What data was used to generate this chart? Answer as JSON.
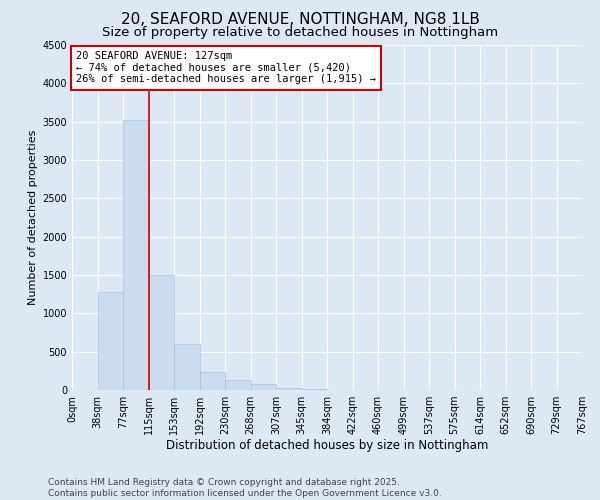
{
  "title": "20, SEAFORD AVENUE, NOTTINGHAM, NG8 1LB",
  "subtitle": "Size of property relative to detached houses in Nottingham",
  "xlabel": "Distribution of detached houses by size in Nottingham",
  "ylabel": "Number of detached properties",
  "bin_labels": [
    "0sqm",
    "38sqm",
    "77sqm",
    "115sqm",
    "153sqm",
    "192sqm",
    "230sqm",
    "268sqm",
    "307sqm",
    "345sqm",
    "384sqm",
    "422sqm",
    "460sqm",
    "499sqm",
    "537sqm",
    "575sqm",
    "614sqm",
    "652sqm",
    "690sqm",
    "729sqm",
    "767sqm"
  ],
  "bar_values": [
    0,
    1280,
    3520,
    1500,
    600,
    240,
    130,
    75,
    30,
    10,
    5,
    2,
    1,
    0,
    0,
    0,
    0,
    0,
    0,
    0
  ],
  "bar_color": "#ccdcf0",
  "bar_edge_color": "#a8c0dc",
  "property_line_x": 3,
  "property_line_color": "#cc0000",
  "annotation_text": "20 SEAFORD AVENUE: 127sqm\n← 74% of detached houses are smaller (5,420)\n26% of semi-detached houses are larger (1,915) →",
  "annotation_box_color": "#ffffff",
  "annotation_box_edge_color": "#cc0000",
  "ylim": [
    0,
    4500
  ],
  "yticks": [
    0,
    500,
    1000,
    1500,
    2000,
    2500,
    3000,
    3500,
    4000,
    4500
  ],
  "background_color": "#dde8f5",
  "grid_color": "#ffffff",
  "footer_line1": "Contains HM Land Registry data © Crown copyright and database right 2025.",
  "footer_line2": "Contains public sector information licensed under the Open Government Licence v3.0.",
  "title_fontsize": 11,
  "subtitle_fontsize": 9.5,
  "xlabel_fontsize": 8.5,
  "ylabel_fontsize": 8,
  "tick_fontsize": 7,
  "annotation_fontsize": 7.5,
  "footer_fontsize": 6.5
}
